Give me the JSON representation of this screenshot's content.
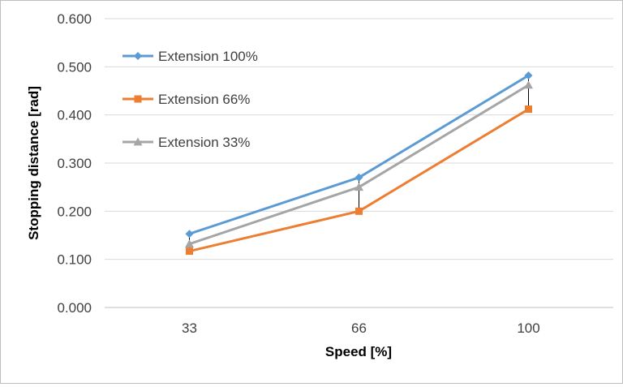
{
  "chart_data": {
    "type": "line",
    "title": "",
    "xlabel": "Speed [%]",
    "ylabel": "Stopping distance [rad]",
    "categories": [
      "33",
      "66",
      "100"
    ],
    "ylim": [
      0,
      0.6
    ],
    "yticks": [
      "0.000",
      "0.100",
      "0.200",
      "0.300",
      "0.400",
      "0.500",
      "0.600"
    ],
    "grid": true,
    "legend_position": "top-left",
    "series": [
      {
        "name": "Extension 100%",
        "values": [
          0.153,
          0.27,
          0.482
        ],
        "color": "#5b9bd5",
        "marker": "diamond"
      },
      {
        "name": "Extension 66%",
        "values": [
          0.117,
          0.2,
          0.412
        ],
        "color": "#ed7d31",
        "marker": "square"
      },
      {
        "name": "Extension 33%",
        "values": [
          0.132,
          0.25,
          0.462
        ],
        "color": "#a5a5a5",
        "marker": "triangle"
      }
    ],
    "error_bars": {
      "color": "#000000",
      "series": "Extension 33%"
    }
  }
}
